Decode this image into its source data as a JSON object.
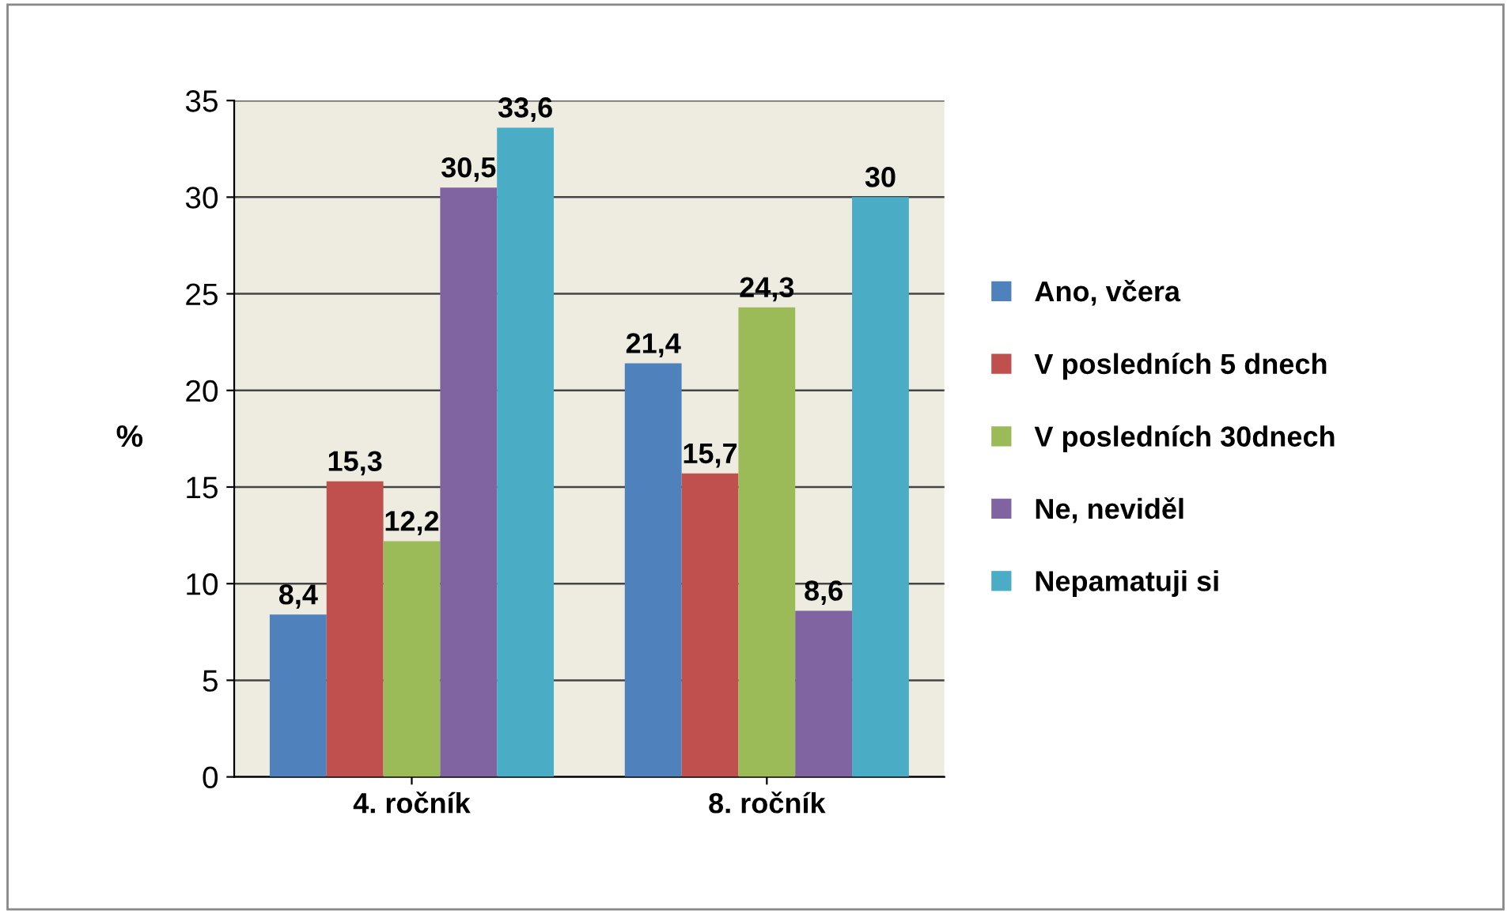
{
  "chart_data": {
    "type": "bar",
    "ylabel": "%",
    "categories": [
      "4. ročník",
      "8. ročník"
    ],
    "series": [
      {
        "name": "Ano, včera",
        "color": "#4f81bd",
        "values": [
          8.4,
          21.4
        ],
        "value_labels": [
          "8,4",
          "21,4"
        ]
      },
      {
        "name": "V posledních 5 dnech",
        "color": "#c0504d",
        "values": [
          15.3,
          15.7
        ],
        "value_labels": [
          "15,3",
          "15,7"
        ]
      },
      {
        "name": "V posledních 30dnech",
        "color": "#9bbb59",
        "values": [
          12.2,
          24.3
        ],
        "value_labels": [
          "12,2",
          "24,3"
        ]
      },
      {
        "name": "Ne, neviděl",
        "color": "#8064a2",
        "values": [
          30.5,
          8.6
        ],
        "value_labels": [
          "30,5",
          "8,6"
        ]
      },
      {
        "name": "Nepamatuji si",
        "color": "#4bacc6",
        "values": [
          33.6,
          30
        ],
        "value_labels": [
          "33,6",
          "30"
        ]
      }
    ],
    "ylim": [
      0,
      35
    ],
    "yticks": [
      0,
      5,
      10,
      15,
      20,
      25,
      30,
      35
    ],
    "grid": "y",
    "legend": "right"
  }
}
